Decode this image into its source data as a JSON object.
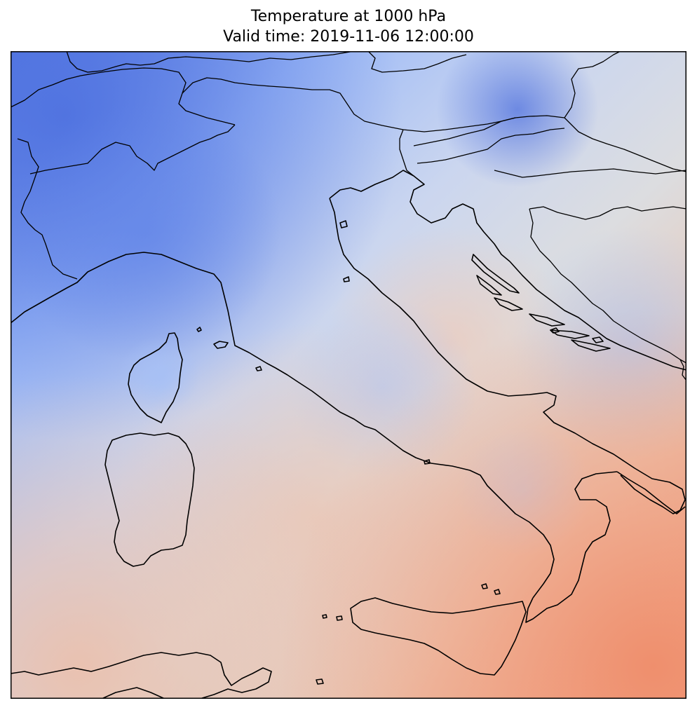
{
  "map": {
    "title_line_1": "Temperature at 1000 hPa",
    "title_line_2": "Valid time: 2019-11-06 12:00:00",
    "colormap": "coolwarm",
    "colors": {
      "cold_strong": "#4f72e0",
      "cold": "#8fb0f8",
      "cool": "#b9cdf5",
      "neutral": "#dcdde0",
      "warm": "#eec3ad",
      "hot": "#f09a7a",
      "coastline": "#000000",
      "frame": "#000000"
    },
    "features": [
      "coastlines",
      "country-borders",
      "corsica",
      "sardinia",
      "sicily",
      "dalmatian-islands"
    ]
  }
}
